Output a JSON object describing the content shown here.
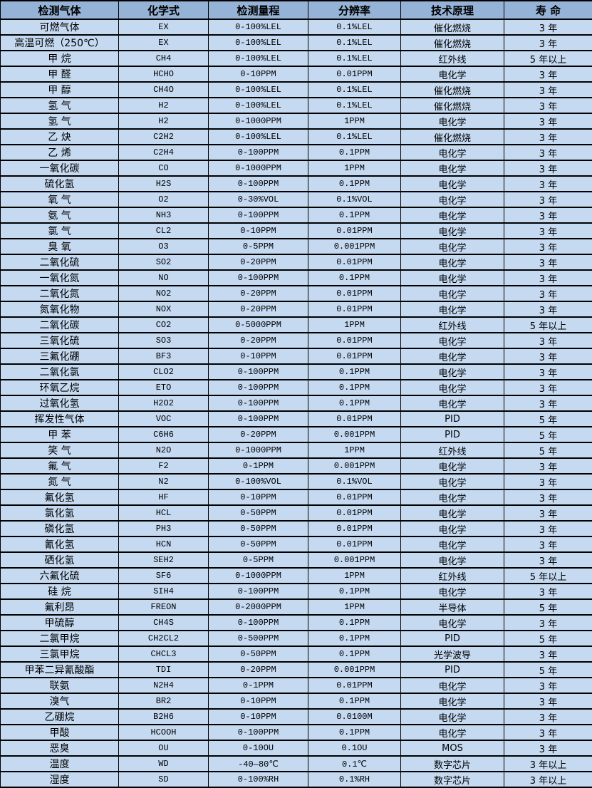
{
  "colors": {
    "header_bg": "#95b3d7",
    "row_bg": "#c5d9f1",
    "border": "#000000",
    "text": "#000000"
  },
  "table": {
    "headers": [
      "检测气体",
      "化学式",
      "检测量程",
      "分辨率",
      "技术原理",
      "寿 命"
    ],
    "rows": [
      {
        "gas": "可燃气体",
        "formula": "EX",
        "range": "0-100%LEL",
        "resolution": "0.1%LEL",
        "principle": "催化燃烧",
        "lifespan": "3 年"
      },
      {
        "gas": "高温可燃（250℃）",
        "formula": "EX",
        "range": "0-100%LEL",
        "resolution": "0.1%LEL",
        "principle": "催化燃烧",
        "lifespan": "3 年"
      },
      {
        "gas": "甲 烷",
        "formula": "CH4",
        "range": "0-100%LEL",
        "resolution": "0.1%LEL",
        "principle": "红外线",
        "lifespan": "5 年以上"
      },
      {
        "gas": "甲 醛",
        "formula": "HCHO",
        "range": "0-10PPM",
        "resolution": "0.01PPM",
        "principle": "电化学",
        "lifespan": "3 年"
      },
      {
        "gas": "甲 醇",
        "formula": "CH4O",
        "range": "0-100%LEL",
        "resolution": "0.1%LEL",
        "principle": "催化燃烧",
        "lifespan": "3 年"
      },
      {
        "gas": "氢 气",
        "formula": "H2",
        "range": "0-100%LEL",
        "resolution": "0.1%LEL",
        "principle": "催化燃烧",
        "lifespan": "3 年"
      },
      {
        "gas": "氢 气",
        "formula": "H2",
        "range": "0-1000PPM",
        "resolution": "1PPM",
        "principle": "电化学",
        "lifespan": "3 年"
      },
      {
        "gas": "乙 炔",
        "formula": "C2H2",
        "range": "0-100%LEL",
        "resolution": "0.1%LEL",
        "principle": "催化燃烧",
        "lifespan": "3 年"
      },
      {
        "gas": "乙 烯",
        "formula": "C2H4",
        "range": "0-100PPM",
        "resolution": "0.1PPM",
        "principle": "电化学",
        "lifespan": "3 年"
      },
      {
        "gas": "一氧化碳",
        "formula": "CO",
        "range": "0-1000PPM",
        "resolution": "1PPM",
        "principle": "电化学",
        "lifespan": "3 年"
      },
      {
        "gas": "硫化氢",
        "formula": "H2S",
        "range": "0-100PPM",
        "resolution": "0.1PPM",
        "principle": "电化学",
        "lifespan": "3 年"
      },
      {
        "gas": "氧 气",
        "formula": "O2",
        "range": "0-30%VOL",
        "resolution": "0.1%VOL",
        "principle": "电化学",
        "lifespan": "3 年"
      },
      {
        "gas": "氨 气",
        "formula": "NH3",
        "range": "0-100PPM",
        "resolution": "0.1PPM",
        "principle": "电化学",
        "lifespan": "3 年"
      },
      {
        "gas": "氯 气",
        "formula": "CL2",
        "range": "0-10PPM",
        "resolution": "0.01PPM",
        "principle": "电化学",
        "lifespan": "3 年"
      },
      {
        "gas": "臭 氧",
        "formula": "O3",
        "range": "0-5PPM",
        "resolution": "0.001PPM",
        "principle": "电化学",
        "lifespan": "3 年"
      },
      {
        "gas": "二氧化硫",
        "formula": "SO2",
        "range": "0-20PPM",
        "resolution": "0.01PPM",
        "principle": "电化学",
        "lifespan": "3 年"
      },
      {
        "gas": "一氧化氮",
        "formula": "NO",
        "range": "0-100PPM",
        "resolution": "0.1PPM",
        "principle": "电化学",
        "lifespan": "3 年"
      },
      {
        "gas": "二氧化氮",
        "formula": "NO2",
        "range": "0-20PPM",
        "resolution": "0.01PPM",
        "principle": "电化学",
        "lifespan": "3 年"
      },
      {
        "gas": "氮氧化物",
        "formula": "NOX",
        "range": "0-20PPM",
        "resolution": "0.01PPM",
        "principle": "电化学",
        "lifespan": "3 年"
      },
      {
        "gas": "二氧化碳",
        "formula": "CO2",
        "range": "0-5000PPM",
        "resolution": "1PPM",
        "principle": "红外线",
        "lifespan": "5 年以上"
      },
      {
        "gas": "三氧化硫",
        "formula": "SO3",
        "range": "0-20PPM",
        "resolution": "0.01PPM",
        "principle": "电化学",
        "lifespan": "3 年"
      },
      {
        "gas": "三氟化硼",
        "formula": "BF3",
        "range": "0-10PPM",
        "resolution": "0.01PPM",
        "principle": "电化学",
        "lifespan": "3 年"
      },
      {
        "gas": "二氧化氯",
        "formula": "CLO2",
        "range": "0-100PPM",
        "resolution": "0.1PPM",
        "principle": "电化学",
        "lifespan": "3 年"
      },
      {
        "gas": "环氧乙烷",
        "formula": "ETO",
        "range": "0-100PPM",
        "resolution": "0.1PPM",
        "principle": "电化学",
        "lifespan": "3 年"
      },
      {
        "gas": "过氧化氢",
        "formula": "H2O2",
        "range": "0-100PPM",
        "resolution": "0.1PPM",
        "principle": "电化学",
        "lifespan": "3 年"
      },
      {
        "gas": "挥发性气体",
        "formula": "VOC",
        "range": "0-100PPM",
        "resolution": "0.01PPM",
        "principle": "PID",
        "lifespan": "5 年"
      },
      {
        "gas": "甲 苯",
        "formula": "C6H6",
        "range": "0-20PPM",
        "resolution": "0.001PPM",
        "principle": "PID",
        "lifespan": "5 年"
      },
      {
        "gas": "笑 气",
        "formula": "N2O",
        "range": "0-1000PPM",
        "resolution": "1PPM",
        "principle": "红外线",
        "lifespan": "5 年"
      },
      {
        "gas": "氟 气",
        "formula": "F2",
        "range": "0-1PPM",
        "resolution": "0.001PPM",
        "principle": "电化学",
        "lifespan": "3 年"
      },
      {
        "gas": "氮 气",
        "formula": "N2",
        "range": "0-100%VOL",
        "resolution": "0.1%VOL",
        "principle": "电化学",
        "lifespan": "3 年"
      },
      {
        "gas": "氟化氢",
        "formula": "HF",
        "range": "0-10PPM",
        "resolution": "0.01PPM",
        "principle": "电化学",
        "lifespan": "3 年"
      },
      {
        "gas": "氯化氢",
        "formula": "HCL",
        "range": "0-50PPM",
        "resolution": "0.01PPM",
        "principle": "电化学",
        "lifespan": "3 年"
      },
      {
        "gas": "磷化氢",
        "formula": "PH3",
        "range": "0-50PPM",
        "resolution": "0.01PPM",
        "principle": "电化学",
        "lifespan": "3 年"
      },
      {
        "gas": "氰化氢",
        "formula": "HCN",
        "range": "0-50PPM",
        "resolution": "0.01PPM",
        "principle": "电化学",
        "lifespan": "3 年"
      },
      {
        "gas": "硒化氢",
        "formula": "SEH2",
        "range": "0-5PPM",
        "resolution": "0.001PPM",
        "principle": "电化学",
        "lifespan": "3 年"
      },
      {
        "gas": "六氟化硫",
        "formula": "SF6",
        "range": "0-1000PPM",
        "resolution": "1PPM",
        "principle": "红外线",
        "lifespan": "5 年以上"
      },
      {
        "gas": "硅 烷",
        "formula": "SIH4",
        "range": "0-100PPM",
        "resolution": "0.1PPM",
        "principle": "电化学",
        "lifespan": "3 年"
      },
      {
        "gas": "氟利昂",
        "formula": "FREON",
        "range": "0-2000PPM",
        "resolution": "1PPM",
        "principle": "半导体",
        "lifespan": "5 年"
      },
      {
        "gas": "甲硫醇",
        "formula": "CH4S",
        "range": "0-100PPM",
        "resolution": "0.1PPM",
        "principle": "电化学",
        "lifespan": "3 年"
      },
      {
        "gas": "二氯甲烷",
        "formula": "CH2CL2",
        "range": "0-500PPM",
        "resolution": "0.1PPM",
        "principle": "PID",
        "lifespan": "5 年"
      },
      {
        "gas": "三氯甲烷",
        "formula": "CHCL3",
        "range": "0-50PPM",
        "resolution": "0.1PPM",
        "principle": "光学波导",
        "lifespan": "3 年"
      },
      {
        "gas": "甲苯二异氰酸酯",
        "formula": "TDI",
        "range": "0-20PPM",
        "resolution": "0.001PPM",
        "principle": "PID",
        "lifespan": "5 年"
      },
      {
        "gas": "联氨",
        "formula": "N2H4",
        "range": "0-1PPM",
        "resolution": "0.01PPM",
        "principle": "电化学",
        "lifespan": "3 年"
      },
      {
        "gas": "溴气",
        "formula": "BR2",
        "range": "0-10PPM",
        "resolution": "0.1PPM",
        "principle": "电化学",
        "lifespan": "3 年"
      },
      {
        "gas": "乙硼烷",
        "formula": "B2H6",
        "range": "0-10PPM",
        "resolution": "0.0100M",
        "principle": "电化学",
        "lifespan": "3 年"
      },
      {
        "gas": "甲酸",
        "formula": "HCOOH",
        "range": "0-100PPM",
        "resolution": "0.1PPM",
        "principle": "电化学",
        "lifespan": "3 年"
      },
      {
        "gas": "恶臭",
        "formula": "OU",
        "range": "0-10OU",
        "resolution": "0.1OU",
        "principle": "MOS",
        "lifespan": "3 年"
      },
      {
        "gas": "温度",
        "formula": "WD",
        "range": "-40—80℃",
        "resolution": "0.1℃",
        "principle": "数字芯片",
        "lifespan": "3 年以上"
      },
      {
        "gas": "湿度",
        "formula": "SD",
        "range": "0-100%RH",
        "resolution": "0.1%RH",
        "principle": "数字芯片",
        "lifespan": "3 年以上"
      }
    ]
  }
}
